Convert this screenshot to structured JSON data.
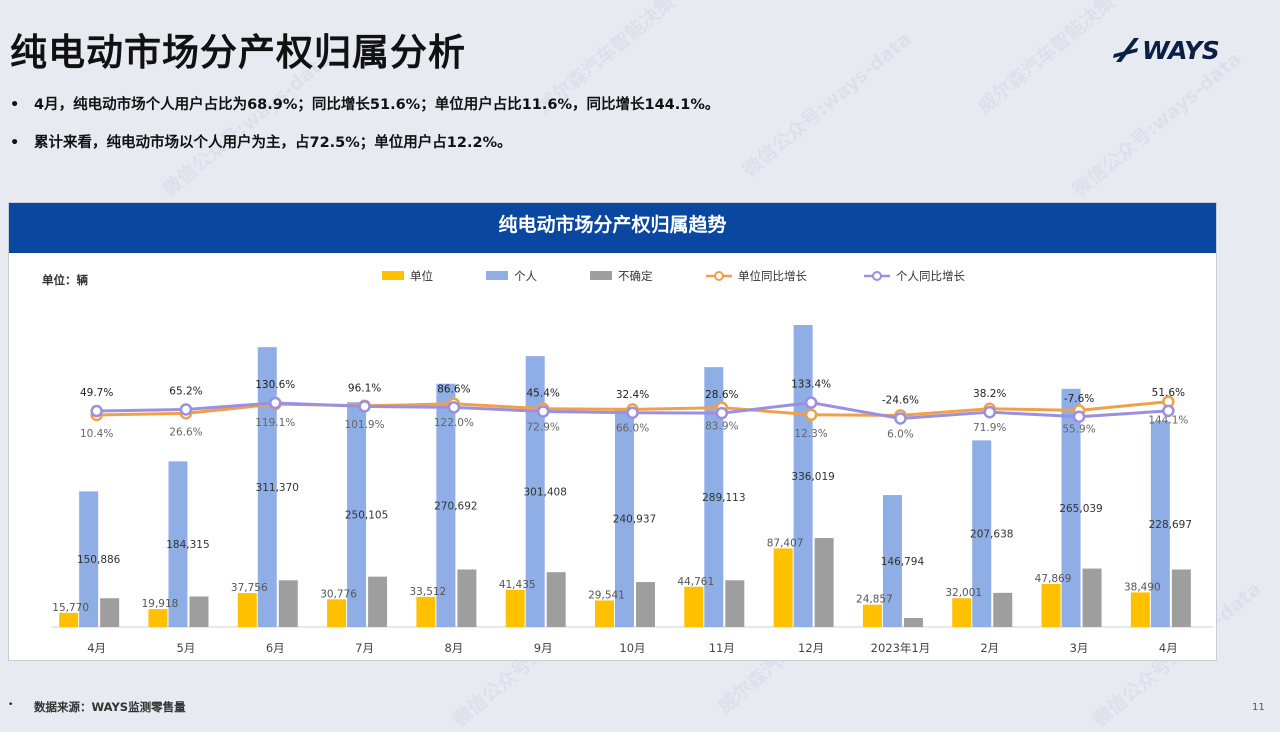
{
  "page": {
    "title": "纯电动市场分产权归属分析",
    "logo_text": "WAYS",
    "bullets": [
      "4月，纯电动市场个人用户占比为68.9%；同比增长51.6%；单位用户占比11.6%，同比增长144.1%。",
      "累计来看，纯电动市场以个人用户为主，占72.5%；单位用户占12.2%。"
    ],
    "bullet_marker": "•",
    "source": "数据来源：WAYS监测零售量",
    "source_marker": "•",
    "page_number": "11",
    "watermarks": [
      "威尔森汽车智能决策",
      "微信公众号:ways-data"
    ]
  },
  "chart_data": {
    "type": "bar",
    "title": "纯电动市场分产权归属趋势",
    "unit_label": "单位：辆",
    "categories": [
      "4月",
      "5月",
      "6月",
      "7月",
      "8月",
      "9月",
      "10月",
      "11月",
      "12月",
      "2023年1月",
      "2月",
      "3月",
      "4月"
    ],
    "bar_series": [
      {
        "name": "单位",
        "color": "#ffc000",
        "values": [
          15770,
          19918,
          37756,
          30776,
          33512,
          41435,
          29541,
          44761,
          87407,
          24857,
          32001,
          47869,
          38490
        ],
        "labels": [
          "15,770",
          "19,918",
          "37,756",
          "30,776",
          "33,512",
          "41,435",
          "29,541",
          "44,761",
          "87,407",
          "24,857",
          "32,001",
          "47,869",
          "38,490"
        ]
      },
      {
        "name": "个人",
        "color": "#8faee6",
        "values": [
          150886,
          184315,
          311370,
          250105,
          270692,
          301408,
          240937,
          289113,
          336019,
          146794,
          207638,
          265039,
          228697
        ],
        "labels": [
          "150,886",
          "184,315",
          "311,370",
          "250,105",
          "270,692",
          "301,408",
          "240,937",
          "289,113",
          "336,019",
          "146,794",
          "207,638",
          "265,039",
          "228,697"
        ]
      },
      {
        "name": "不确定",
        "color": "#9e9e9e",
        "values": [
          32000,
          34000,
          52000,
          56000,
          64000,
          61000,
          50000,
          52000,
          99000,
          10000,
          38000,
          65000,
          64000
        ],
        "labels": []
      }
    ],
    "line_series": [
      {
        "name": "单位同比增长",
        "color": "#f0a04b",
        "values": [
          10.4,
          26.6,
          119.1,
          101.9,
          122.0,
          72.9,
          66.0,
          83.9,
          12.3,
          6.0,
          71.9,
          55.9,
          144.1
        ],
        "labels": [
          "10.4%",
          "26.6%",
          "119.1%",
          "101.9%",
          "122.0%",
          "72.9%",
          "66.0%",
          "83.9%",
          "12.3%",
          "6.0%",
          "71.9%",
          "55.9%",
          "144.1%"
        ]
      },
      {
        "name": "个人同比增长",
        "color": "#9b8fe0",
        "values": [
          49.7,
          65.2,
          130.6,
          96.1,
          86.6,
          45.4,
          32.4,
          28.6,
          133.4,
          -24.6,
          38.2,
          -7.6,
          51.6
        ],
        "labels": [
          "49.7%",
          "65.2%",
          "130.6%",
          "96.1%",
          "86.6%",
          "45.4%",
          "32.4%",
          "28.6%",
          "133.4%",
          "-24.6%",
          "38.2%",
          "-7.6%",
          "51.6%"
        ]
      }
    ],
    "legend_position": "top",
    "grid": false
  }
}
